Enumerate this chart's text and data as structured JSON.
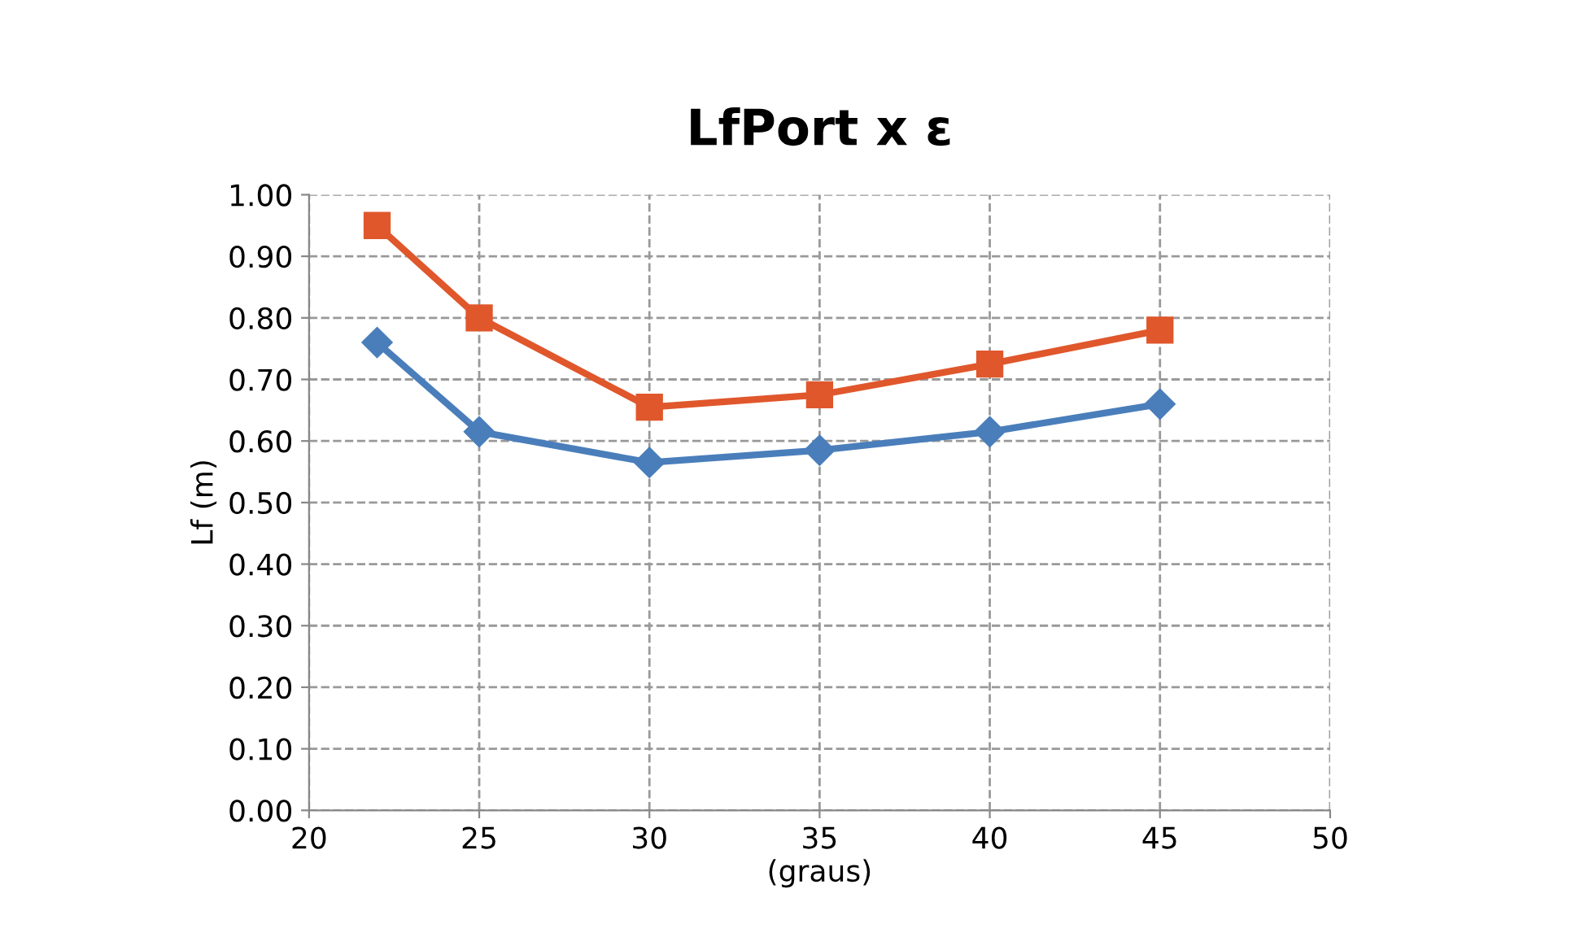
{
  "chart_data": {
    "type": "line",
    "title": "LfPort x ε",
    "xlabel": "(graus)",
    "ylabel": "Lf (m)",
    "x": [
      22,
      25,
      30,
      35,
      40,
      45
    ],
    "series": [
      {
        "color": "#4a7ebb",
        "values": [
          0.76,
          0.615,
          0.565,
          0.585,
          0.615,
          0.66
        ],
        "marker": "diamond"
      },
      {
        "color": "#e0572c",
        "values": [
          0.95,
          0.8,
          0.655,
          0.675,
          0.725,
          0.78
        ],
        "marker": "square"
      }
    ],
    "xlim": [
      20,
      50
    ],
    "xticks": [
      20,
      25,
      30,
      35,
      40,
      45,
      50
    ],
    "ylim": [
      0,
      1
    ],
    "yticks": [
      {
        "value": 0,
        "label": "0.00"
      },
      {
        "value": 0.1,
        "label": "0.10"
      },
      {
        "value": 0.2,
        "label": "0.20"
      },
      {
        "value": 0.3,
        "label": "0.30"
      },
      {
        "value": 0.4,
        "label": "0.40"
      },
      {
        "value": 0.5,
        "label": "0.50"
      },
      {
        "value": 0.6,
        "label": "0.60"
      },
      {
        "value": 0.7,
        "label": "0.70"
      },
      {
        "value": 0.8,
        "label": "0.80"
      },
      {
        "value": 0.9,
        "label": "0.90"
      },
      {
        "value": 1,
        "label": "1.00"
      }
    ],
    "grid": true,
    "line_style": "solid"
  }
}
